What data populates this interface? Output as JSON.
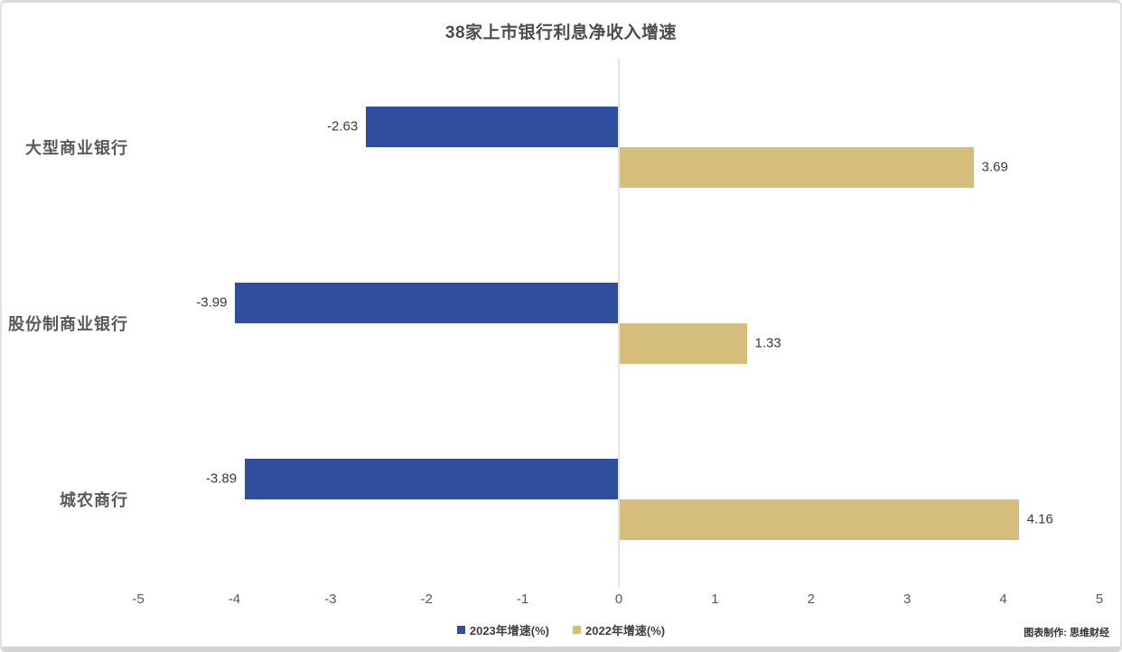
{
  "chart_data": {
    "type": "bar",
    "orientation": "horizontal",
    "title": "38家上市银行利息净收入增速",
    "categories": [
      "大型商业银行",
      "股份制商业银行",
      "城农商行"
    ],
    "series": [
      {
        "name": "2023年增速(%)",
        "color": "#2f4f9e",
        "values": [
          -2.63,
          -3.99,
          -3.89
        ]
      },
      {
        "name": "2022年增速(%)",
        "color": "#d5bd7c",
        "values": [
          3.69,
          1.33,
          4.16
        ]
      }
    ],
    "data_labels": [
      [
        "-2.63",
        "-3.99",
        "-3.89"
      ],
      [
        "3.69",
        "1.33",
        "4.16"
      ]
    ],
    "xlim": [
      -5,
      5
    ],
    "x_ticks": [
      "-5",
      "-4",
      "-3",
      "-2",
      "-1",
      "0",
      "1",
      "2",
      "3",
      "4",
      "5"
    ],
    "grid": false,
    "legend_position": "bottom",
    "axis_line_color": "#e3e3e3"
  },
  "footer": {
    "credit": "图表制作: 思维财经"
  }
}
